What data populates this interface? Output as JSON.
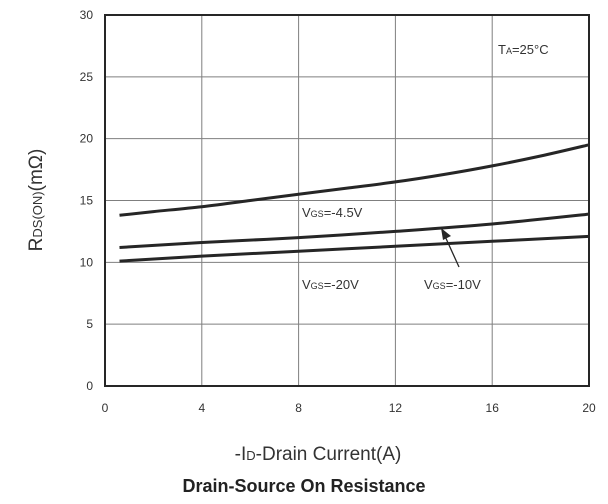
{
  "chart_data": {
    "type": "line",
    "title": "Drain-Source On Resistance",
    "xlabel": {
      "prefix": "-I",
      "sub": "D",
      "rest": "-Drain Current(A)"
    },
    "ylabel": {
      "main": "R",
      "sub": "DS(ON)",
      "rest": "(mΩ)"
    },
    "xlim": [
      0,
      20
    ],
    "ylim": [
      0,
      30
    ],
    "xticks": [
      0,
      4,
      8,
      12,
      16,
      20
    ],
    "yticks": [
      0,
      5,
      10,
      15,
      20,
      25,
      30
    ],
    "grid": true,
    "series": [
      {
        "name": "VGS=-4.5V",
        "x": [
          0.6,
          2,
          4,
          6,
          8,
          10,
          12,
          14,
          16,
          18,
          20
        ],
        "y": [
          13.8,
          14.1,
          14.5,
          15.0,
          15.5,
          16.0,
          16.5,
          17.1,
          17.8,
          18.6,
          19.5
        ]
      },
      {
        "name": "VGS=-10V",
        "x": [
          0.6,
          4,
          8,
          12,
          16,
          20
        ],
        "y": [
          11.2,
          11.6,
          12.0,
          12.5,
          13.1,
          13.9
        ]
      },
      {
        "name": "VGS=-20V",
        "x": [
          0.6,
          4,
          8,
          12,
          16,
          20
        ],
        "y": [
          10.1,
          10.5,
          10.9,
          11.3,
          11.7,
          12.1
        ]
      }
    ],
    "annotations": {
      "temperature": {
        "main": "T",
        "sub": "A",
        "rest": "=25°C"
      },
      "vgs_45": {
        "main": "V",
        "sub": "GS",
        "rest": "=-4.5V"
      },
      "vgs_20": {
        "main": "V",
        "sub": "GS",
        "rest": "=-20V"
      },
      "vgs_10": {
        "main": "V",
        "sub": "GS",
        "rest": "=-10V"
      }
    },
    "colors": {
      "curve": "#262626",
      "grid": "#7f7f7f",
      "frame": "#262626"
    }
  }
}
